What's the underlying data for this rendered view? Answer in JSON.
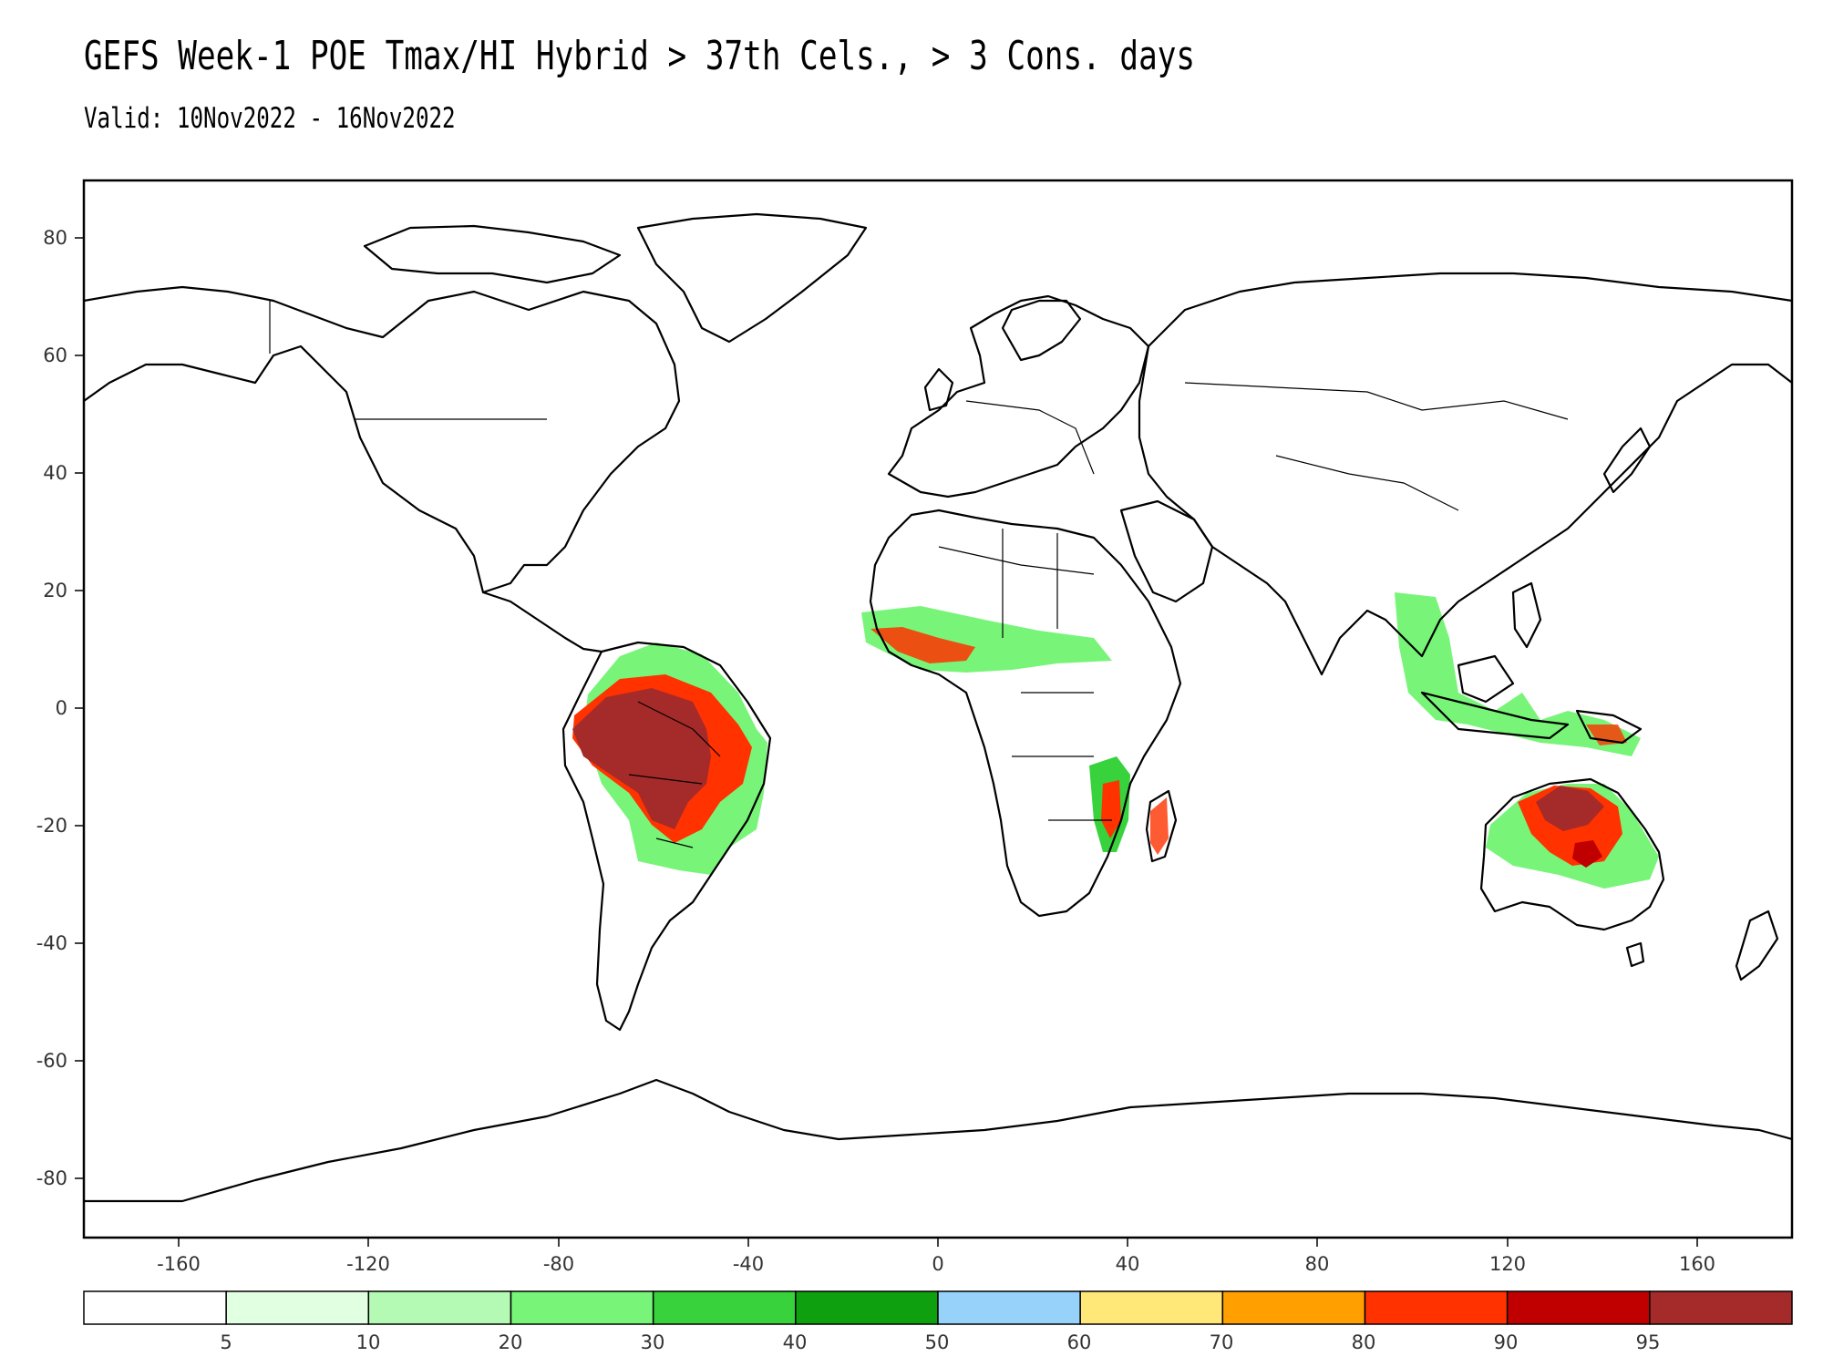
{
  "title": "GEFS Week-1 POE Tmax/HI Hybrid > 37th Cels., > 3 Cons. days",
  "subtitle": "Valid: 10Nov2022 - 16Nov2022",
  "map": {
    "projection": "latitude-longitude",
    "lon_range": [
      -180,
      180
    ],
    "lat_range": [
      -90,
      90
    ],
    "x_ticks": [
      "-160",
      "-120",
      "-80",
      "-40",
      "0",
      "40",
      "80",
      "120",
      "160"
    ],
    "y_ticks": [
      "80",
      "60",
      "40",
      "20",
      "0",
      "-20",
      "-40",
      "-60",
      "-80"
    ]
  },
  "colorbar": {
    "colors": [
      "#ffffff",
      "#e1ffe1",
      "#b4fab4",
      "#78f578",
      "#37d23c",
      "#0fa00f",
      "#96d2fa",
      "#ffe878",
      "#ffa000",
      "#ff3200",
      "#c00000",
      "#a52a2a"
    ],
    "labels": [
      "5",
      "10",
      "20",
      "30",
      "40",
      "50",
      "60",
      "70",
      "80",
      "90",
      "95"
    ]
  }
}
